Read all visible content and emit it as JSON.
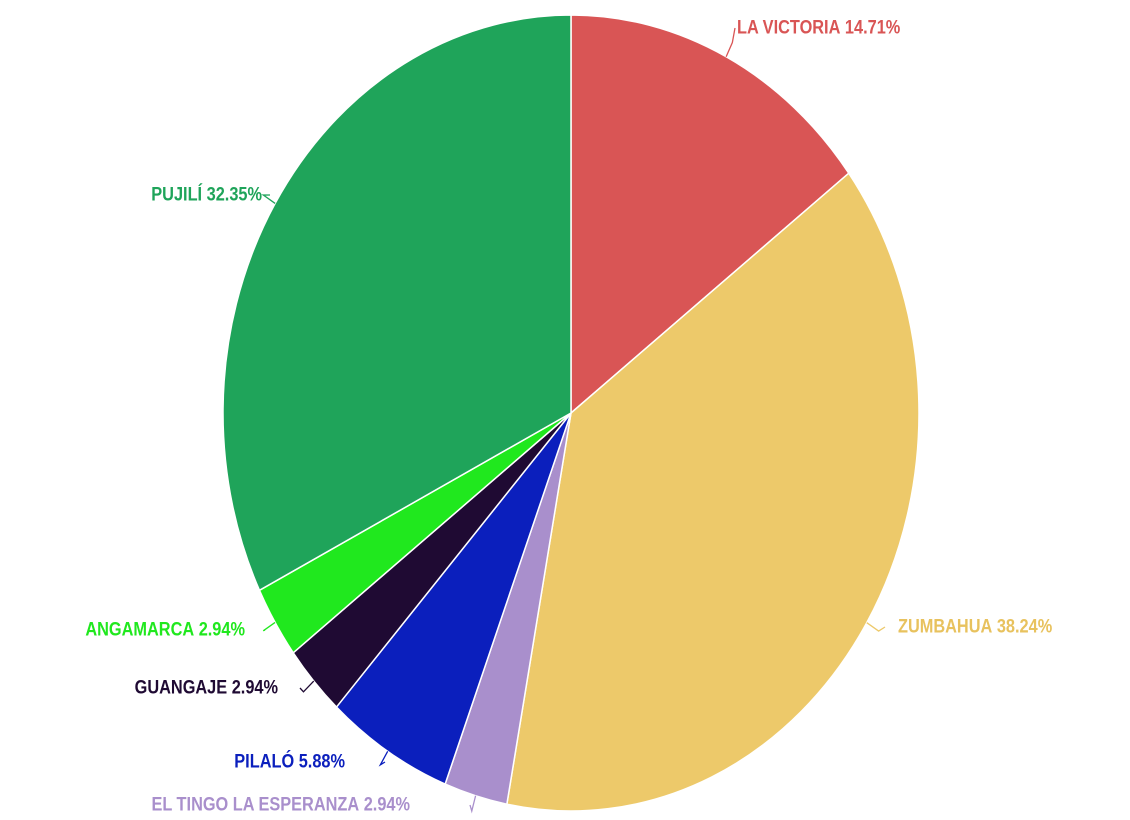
{
  "chart_data": {
    "type": "pie",
    "categories": [
      "LA VICTORIA",
      "ZUMBAHUA",
      "EL TINGO LA ESPERANZA",
      "PILALÓ",
      "GUANGAJE",
      "ANGAMARCA",
      "PUJILÍ"
    ],
    "values": [
      14.71,
      38.24,
      2.94,
      5.88,
      2.94,
      2.94,
      32.35
    ],
    "value_labels": [
      "14.71%",
      "38.24%",
      "2.94%",
      "5.88%",
      "2.94%",
      "2.94%",
      "32.35%"
    ],
    "colors": [
      "#d95555",
      "#edc96a",
      "#a98fcc",
      "#0b1fbd",
      "#1f0a33",
      "#20e81e",
      "#1fa45a"
    ]
  }
}
